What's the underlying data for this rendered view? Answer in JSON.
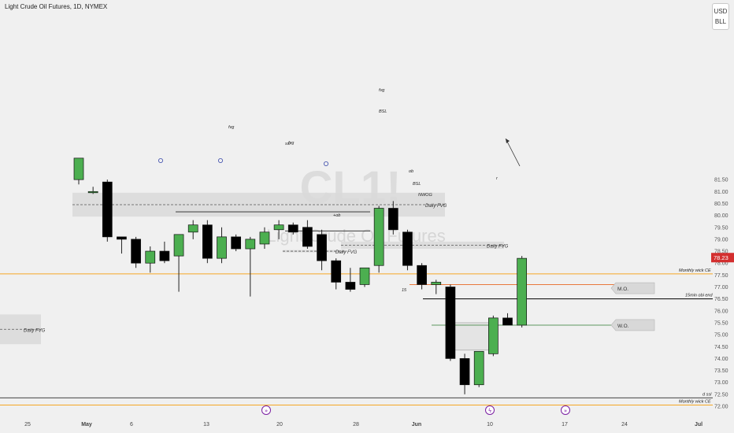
{
  "header": {
    "title": "Light Crude Oil Futures, 1D, NYMEX",
    "currency": "USD",
    "unit": "BLL"
  },
  "watermark": {
    "symbol": "CL1!",
    "name": "Light Crude Oil Futures"
  },
  "colors": {
    "background": "#f0f0f0",
    "bull": "#4caf50",
    "bear": "#000000",
    "zone": "#d9d9d9",
    "orange": "#f5a623",
    "price_tag": "#d32f2f",
    "event_icon": "#7b1fa2"
  },
  "chart_data": {
    "type": "candlestick",
    "title": "Light Crude Oil Futures, 1D, NYMEX",
    "ylim": [
      71.8,
      82.0
    ],
    "y_ticks": [
      72.0,
      72.5,
      73.0,
      73.5,
      74.0,
      74.5,
      75.0,
      75.5,
      76.0,
      76.5,
      77.0,
      77.5,
      78.0,
      78.5,
      79.0,
      79.5,
      80.0,
      80.5,
      81.0,
      81.5
    ],
    "x_ticks": [
      "25",
      "May",
      "6",
      "13",
      "20",
      "28",
      "Jun",
      "10",
      "17",
      "24",
      "Jul"
    ],
    "current_price": 78.23,
    "candles": [
      {
        "o": 81.5,
        "h": 82.3,
        "l": 81.3,
        "c": 82.4
      },
      {
        "o": 81.0,
        "h": 81.2,
        "l": 80.9,
        "c": 81.0
      },
      {
        "o": 81.4,
        "h": 81.5,
        "l": 78.9,
        "c": 79.1
      },
      {
        "o": 79.1,
        "h": 79.1,
        "l": 78.4,
        "c": 79.0
      },
      {
        "o": 79.0,
        "h": 79.1,
        "l": 77.8,
        "c": 78.0
      },
      {
        "o": 78.0,
        "h": 78.7,
        "l": 77.6,
        "c": 78.5
      },
      {
        "o": 78.5,
        "h": 78.9,
        "l": 78.0,
        "c": 78.1
      },
      {
        "o": 78.3,
        "h": 79.1,
        "l": 76.8,
        "c": 79.2
      },
      {
        "o": 79.3,
        "h": 79.8,
        "l": 79.0,
        "c": 79.6
      },
      {
        "o": 79.6,
        "h": 79.8,
        "l": 78.0,
        "c": 78.2
      },
      {
        "o": 78.2,
        "h": 79.5,
        "l": 78.0,
        "c": 79.1
      },
      {
        "o": 79.1,
        "h": 79.2,
        "l": 78.5,
        "c": 78.6
      },
      {
        "o": 78.6,
        "h": 79.1,
        "l": 76.6,
        "c": 79.0
      },
      {
        "o": 78.8,
        "h": 79.5,
        "l": 78.6,
        "c": 79.3
      },
      {
        "o": 79.4,
        "h": 79.8,
        "l": 79.0,
        "c": 79.6
      },
      {
        "o": 79.6,
        "h": 79.7,
        "l": 79.2,
        "c": 79.3
      },
      {
        "o": 79.5,
        "h": 79.8,
        "l": 78.6,
        "c": 78.7
      },
      {
        "o": 79.2,
        "h": 79.4,
        "l": 77.7,
        "c": 78.1
      },
      {
        "o": 78.1,
        "h": 78.2,
        "l": 76.9,
        "c": 77.2
      },
      {
        "o": 77.2,
        "h": 77.8,
        "l": 76.8,
        "c": 76.9
      },
      {
        "o": 77.1,
        "h": 77.8,
        "l": 77.0,
        "c": 77.8
      },
      {
        "o": 77.9,
        "h": 80.4,
        "l": 77.6,
        "c": 80.3
      },
      {
        "o": 80.3,
        "h": 80.6,
        "l": 79.2,
        "c": 79.4
      },
      {
        "o": 79.3,
        "h": 79.4,
        "l": 77.7,
        "c": 77.9
      },
      {
        "o": 77.9,
        "h": 78.0,
        "l": 76.9,
        "c": 77.1
      },
      {
        "o": 77.1,
        "h": 77.3,
        "l": 76.7,
        "c": 77.2
      },
      {
        "o": 77.0,
        "h": 77.1,
        "l": 73.9,
        "c": 74.0
      },
      {
        "o": 74.0,
        "h": 74.2,
        "l": 72.5,
        "c": 72.9
      },
      {
        "o": 72.9,
        "h": 74.3,
        "l": 72.8,
        "c": 74.3
      },
      {
        "o": 74.2,
        "h": 75.8,
        "l": 74.1,
        "c": 75.7
      },
      {
        "o": 75.7,
        "h": 75.9,
        "l": 75.4,
        "c": 75.4
      },
      {
        "o": 75.4,
        "h": 78.3,
        "l": 75.3,
        "c": 78.2
      }
    ],
    "horizontal_lines": [
      {
        "label": "Monthly wick CE",
        "price": 77.55,
        "color": "#f5a623"
      },
      {
        "label": "15min obi end",
        "price": 76.5,
        "color": "#000000"
      },
      {
        "label": "d ssl",
        "price": 72.35,
        "color": "#444444"
      },
      {
        "label": "Monthly wick CE",
        "price": 72.05,
        "color": "#f5a623"
      }
    ],
    "zones": [
      {
        "label": "Daily FVG",
        "top": 80.95,
        "bottom": 79.95
      },
      {
        "label": "Daily FVG",
        "top": 78.9,
        "bottom": 78.6
      },
      {
        "label": "Daily FVG",
        "top": 78.55,
        "bottom": 78.45
      },
      {
        "label": "Daily FVG",
        "top": 75.85,
        "bottom": 74.6
      }
    ],
    "annotations": [
      "fvg",
      "fvg",
      "fvg",
      "ssl",
      "BSL",
      "ob",
      "BSL",
      "NWOG",
      "+ob",
      "15",
      "r"
    ],
    "price_boxes": [
      "M.O.",
      "W.O."
    ]
  }
}
